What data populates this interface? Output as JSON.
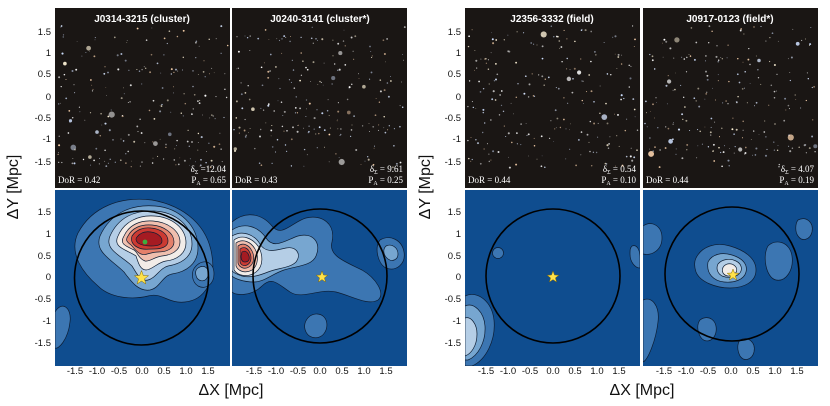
{
  "figure": {
    "y_axis_label": "ΔY [Mpc]",
    "x_axis_label": "ΔX [Mpc]",
    "y_ticks": [
      "1.5",
      "1",
      "0.5",
      "0",
      "-0.5",
      "-1",
      "-1.5"
    ],
    "x_ticks": [
      "-1.5",
      "-1.0",
      "-0.5",
      "0.0",
      "0.5",
      "1.0",
      "1.5"
    ]
  },
  "panels": [
    {
      "id": "J0314-3215",
      "title": "J0314-3215 (cluster)",
      "dor": "DoR = 0.42",
      "delta": "δ",
      "delta_sub": "Σ",
      "delta_val": " =12.04",
      "pa": "P",
      "pa_sub": "A",
      "pa_val": " = 0.65"
    },
    {
      "id": "J0240-3141",
      "title": "J0240-3141 (cluster*)",
      "dor": "DoR = 0.43",
      "delta": "δ",
      "delta_sub": "Σ",
      "delta_val": " = 9.61",
      "pa": "P",
      "pa_sub": "A",
      "pa_val": " = 0.25"
    },
    {
      "id": "J2356-3332",
      "title": "J2356-3332 (field)",
      "dor": "DoR = 0.44",
      "delta": "δ",
      "delta_sub": "Σ",
      "delta_val": " = 0.54",
      "pa": "P",
      "pa_sub": "A",
      "pa_val": " = 0.10"
    },
    {
      "id": "J0917-0123",
      "title": "J0917-0123 (field*)",
      "dor": "DoR = 0.44",
      "delta": "δ",
      "delta_sub": "Σ",
      "delta_val": " = 4.07",
      "pa": "P",
      "pa_sub": "A",
      "pa_val": " = 0.19"
    }
  ],
  "colors": {
    "c0": "#0f4d8f",
    "c1": "#3c76b2",
    "c2": "#77a6d0",
    "c3": "#b5cee6",
    "c4": "#f2ece8",
    "c5": "#f0bfae",
    "c6": "#e4806a",
    "c7": "#cc3a32",
    "c8": "#a51b22",
    "star": "#ffe24a",
    "dot": "#3fae3f"
  }
}
